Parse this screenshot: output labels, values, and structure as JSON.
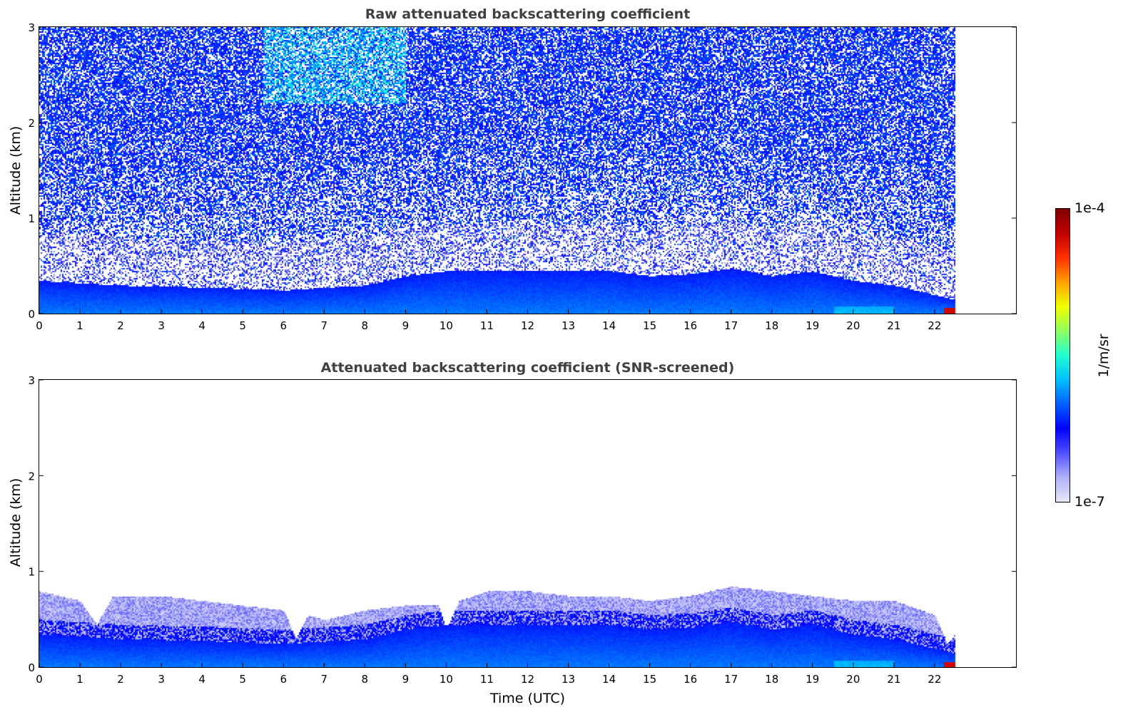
{
  "chart_data": [
    {
      "type": "heatmap",
      "title": "Raw attenuated backscattering coefficient",
      "xlabel": "",
      "ylabel": "Altitude (km)",
      "xlim": [
        0,
        24
      ],
      "ylim": [
        0,
        3
      ],
      "xticks": [
        0,
        1,
        2,
        3,
        4,
        5,
        6,
        7,
        8,
        9,
        10,
        11,
        12,
        13,
        14,
        15,
        16,
        17,
        18,
        19,
        20,
        21,
        22
      ],
      "yticks": [
        0,
        1,
        2,
        3
      ],
      "data_end_hour": 22.5,
      "screened": false,
      "boundary_layer_top_km": {
        "x": [
          0,
          2,
          4,
          6,
          8,
          9,
          10,
          12,
          14,
          15,
          16,
          17,
          18,
          19,
          20,
          21,
          22,
          22.5
        ],
        "y": [
          0.35,
          0.3,
          0.28,
          0.25,
          0.3,
          0.4,
          0.45,
          0.45,
          0.45,
          0.4,
          0.42,
          0.48,
          0.4,
          0.45,
          0.35,
          0.3,
          0.2,
          0.15
        ]
      }
    },
    {
      "type": "heatmap",
      "title": "Attenuated backscattering coefficient (SNR-screened)",
      "xlabel": "Time (UTC)",
      "ylabel": "Altitude (km)",
      "xlim": [
        0,
        24
      ],
      "ylim": [
        0,
        3
      ],
      "xticks": [
        0,
        1,
        2,
        3,
        4,
        5,
        6,
        7,
        8,
        9,
        10,
        11,
        12,
        13,
        14,
        15,
        16,
        17,
        18,
        19,
        20,
        21,
        22
      ],
      "yticks": [
        0,
        1,
        2,
        3
      ],
      "data_end_hour": 22.5,
      "screened": true,
      "boundary_layer_top_km": {
        "x": [
          0,
          2,
          4,
          6,
          8,
          9,
          10,
          12,
          14,
          15,
          16,
          17,
          18,
          19,
          20,
          21,
          22,
          22.5
        ],
        "y": [
          0.35,
          0.3,
          0.28,
          0.25,
          0.3,
          0.4,
          0.45,
          0.45,
          0.45,
          0.4,
          0.42,
          0.48,
          0.4,
          0.45,
          0.35,
          0.3,
          0.2,
          0.15
        ]
      },
      "signal_top_km": {
        "x": [
          0,
          1,
          1.4,
          1.8,
          3,
          4,
          5,
          6,
          6.3,
          6.6,
          7,
          8,
          9,
          9.8,
          10,
          10.3,
          11,
          12,
          13,
          14,
          15,
          16,
          17,
          18,
          19,
          20,
          21,
          22,
          22.3,
          22.5
        ],
        "y": [
          0.8,
          0.7,
          0.45,
          0.75,
          0.75,
          0.7,
          0.65,
          0.6,
          0.3,
          0.55,
          0.5,
          0.6,
          0.65,
          0.65,
          0.4,
          0.7,
          0.8,
          0.8,
          0.75,
          0.75,
          0.7,
          0.75,
          0.85,
          0.8,
          0.75,
          0.7,
          0.7,
          0.55,
          0.25,
          0.35
        ]
      }
    }
  ],
  "colorbar": {
    "label": "1/m/sr",
    "min_label": "1e-7",
    "max_label": "1e-4",
    "scale": "log",
    "range": [
      1e-07,
      0.0001
    ],
    "stops": [
      "#e8e8f8",
      "#b0b0f8",
      "#5050ff",
      "#0000ff",
      "#0060ff",
      "#00c0ff",
      "#20ffd0",
      "#90ff60",
      "#f0ff00",
      "#ffa000",
      "#ff3000",
      "#c00000",
      "#800000"
    ]
  }
}
